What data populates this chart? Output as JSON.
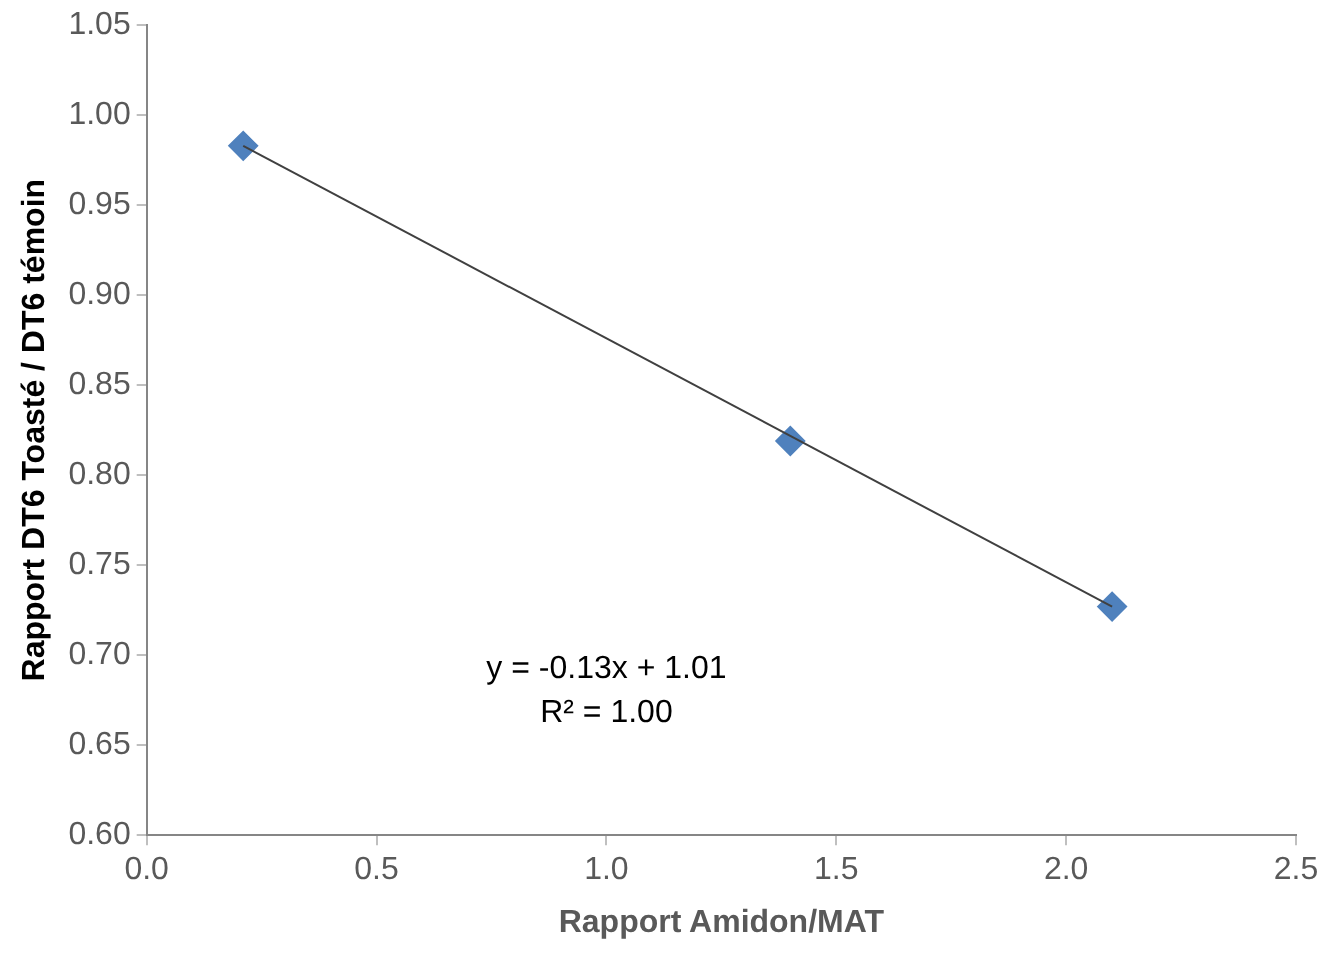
{
  "chart_data": {
    "type": "scatter",
    "xlabel": "Rapport Amidon/MAT",
    "ylabel": "Rapport DT6 Toasté / DT6 témoin",
    "xlim": [
      0,
      2.5
    ],
    "xticks": [
      {
        "value": 0,
        "label": "0.0"
      },
      {
        "value": 0.5,
        "label": "0.5"
      },
      {
        "value": 1,
        "label": "1.0"
      },
      {
        "value": 1.5,
        "label": "1.5"
      },
      {
        "value": 2,
        "label": "2.0"
      },
      {
        "value": 2.5,
        "label": "2.5"
      }
    ],
    "ylim": [
      0.6,
      1.05
    ],
    "yticks": [
      {
        "value": 0.6,
        "label": "0.60"
      },
      {
        "value": 0.65,
        "label": "0.65"
      },
      {
        "value": 0.7,
        "label": "0.70"
      },
      {
        "value": 0.75,
        "label": "0.75"
      },
      {
        "value": 0.8,
        "label": "0.80"
      },
      {
        "value": 0.85,
        "label": "0.85"
      },
      {
        "value": 0.9,
        "label": "0.90"
      },
      {
        "value": 0.95,
        "label": "0.95"
      },
      {
        "value": 1,
        "label": "1.00"
      },
      {
        "value": 1.05,
        "label": "1.05"
      }
    ],
    "grid": false,
    "legend": false,
    "series": [
      {
        "color": "#4f81bd",
        "marker": "diamond",
        "x": [
          0.21,
          1.4,
          2.1
        ],
        "values": [
          0.983,
          0.819,
          0.727
        ]
      },
      {
        "type": "line",
        "color": "#404040",
        "marker": "none",
        "line_style": "solid",
        "x": [
          0.21,
          2.1
        ],
        "values": [
          0.983,
          0.727
        ]
      }
    ],
    "annotations": [
      "y = -0.13x + 1.01",
      "R² = 1.00"
    ]
  }
}
